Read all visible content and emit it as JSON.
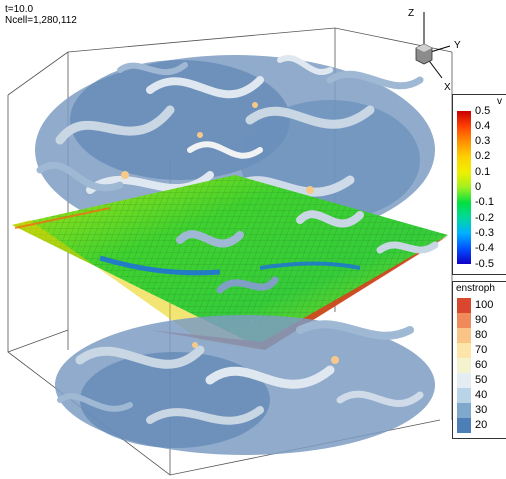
{
  "info": {
    "time_label": "t=10.0",
    "ncell_label": "Ncell=1,280,112"
  },
  "axes": {
    "z": "Z",
    "y": "Y",
    "x": "X"
  },
  "legend_v": {
    "title": "v",
    "labels": [
      "0.5",
      "0.4",
      "0.3",
      "0.2",
      "0.1",
      "0",
      "-0.1",
      "-0.2",
      "-0.3",
      "-0.4",
      "-0.5"
    ]
  },
  "legend_enstrophy": {
    "title": "enstroph",
    "levels": [
      {
        "label": "100",
        "color": "#d9472f"
      },
      {
        "label": "90",
        "color": "#ef8a5b"
      },
      {
        "label": "80",
        "color": "#f8c586"
      },
      {
        "label": "70",
        "color": "#fde4a9"
      },
      {
        "label": "60",
        "color": "#f4f2cf"
      },
      {
        "label": "50",
        "color": "#e4eef2"
      },
      {
        "label": "40",
        "color": "#b8d4e6"
      },
      {
        "label": "30",
        "color": "#7fa9cc"
      },
      {
        "label": "20",
        "color": "#4d7fb6"
      }
    ]
  },
  "colors": {
    "tube": "#6b8fb8",
    "tube_light": "#c9d6e4",
    "plane_green": "#3fd12f",
    "plane_yellow": "#e2e400",
    "plane_red": "#e13a20",
    "plane_blue": "#1e6fe0"
  }
}
